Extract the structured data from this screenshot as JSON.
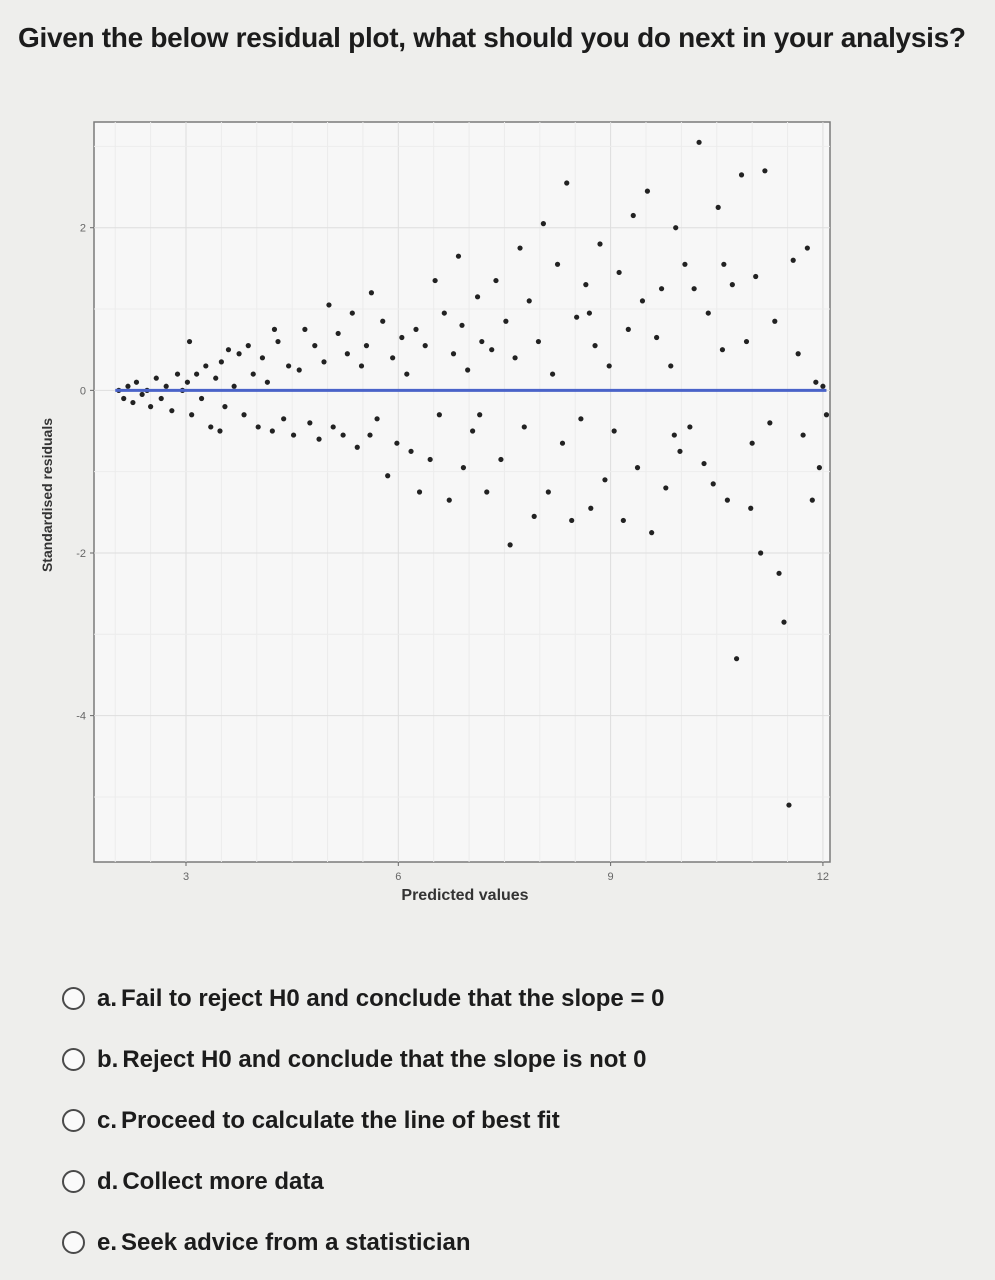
{
  "question": "Given the below residual plot, what should you do next in your analysis?",
  "options": [
    {
      "letter": "a.",
      "text": "Fail to reject H0 and conclude that the slope = 0"
    },
    {
      "letter": "b.",
      "text": "Reject H0 and conclude that the slope is not 0"
    },
    {
      "letter": "c.",
      "text": "Proceed to calculate the line of best fit"
    },
    {
      "letter": "d.",
      "text": "Collect more data"
    },
    {
      "letter": "e.",
      "text": "Seek advice from a statistician"
    }
  ],
  "chart_data": {
    "type": "scatter",
    "xlabel": "Predicted values",
    "ylabel": "Standardised residuals",
    "xlim": [
      1.7,
      12.1
    ],
    "ylim": [
      -5.8,
      3.3
    ],
    "xticks": [
      3,
      6,
      9,
      12
    ],
    "yticks": [
      2,
      0,
      -2,
      -4
    ],
    "grid": true,
    "reference_line": {
      "y": 0,
      "color": "#4a63c9"
    },
    "point_color": "#222222",
    "points": [
      [
        2.05,
        0.0
      ],
      [
        2.12,
        -0.1
      ],
      [
        2.18,
        0.05
      ],
      [
        2.25,
        -0.15
      ],
      [
        2.3,
        0.1
      ],
      [
        2.38,
        -0.05
      ],
      [
        2.45,
        0.0
      ],
      [
        2.5,
        -0.2
      ],
      [
        2.58,
        0.15
      ],
      [
        2.65,
        -0.1
      ],
      [
        2.72,
        0.05
      ],
      [
        2.8,
        -0.25
      ],
      [
        2.88,
        0.2
      ],
      [
        2.95,
        0.0
      ],
      [
        3.02,
        0.1
      ],
      [
        3.08,
        -0.3
      ],
      [
        3.15,
        0.2
      ],
      [
        3.22,
        -0.1
      ],
      [
        3.28,
        0.3
      ],
      [
        3.35,
        -0.45
      ],
      [
        3.42,
        0.15
      ],
      [
        3.5,
        0.35
      ],
      [
        3.55,
        -0.2
      ],
      [
        3.6,
        0.5
      ],
      [
        3.68,
        0.05
      ],
      [
        3.75,
        0.45
      ],
      [
        3.82,
        -0.3
      ],
      [
        3.88,
        0.55
      ],
      [
        3.95,
        0.2
      ],
      [
        4.02,
        -0.45
      ],
      [
        4.08,
        0.4
      ],
      [
        4.15,
        0.1
      ],
      [
        4.22,
        -0.5
      ],
      [
        4.3,
        0.6
      ],
      [
        4.38,
        -0.35
      ],
      [
        4.45,
        0.3
      ],
      [
        4.52,
        -0.55
      ],
      [
        4.6,
        0.25
      ],
      [
        4.68,
        0.75
      ],
      [
        4.75,
        -0.4
      ],
      [
        4.82,
        0.55
      ],
      [
        4.88,
        -0.6
      ],
      [
        4.95,
        0.35
      ],
      [
        5.02,
        1.05
      ],
      [
        5.08,
        -0.45
      ],
      [
        5.15,
        0.7
      ],
      [
        5.22,
        -0.55
      ],
      [
        5.28,
        0.45
      ],
      [
        5.35,
        0.95
      ],
      [
        5.42,
        -0.7
      ],
      [
        5.48,
        0.3
      ],
      [
        5.55,
        0.55
      ],
      [
        5.62,
        1.2
      ],
      [
        5.7,
        -0.35
      ],
      [
        5.78,
        0.85
      ],
      [
        5.85,
        -1.05
      ],
      [
        5.92,
        0.4
      ],
      [
        5.98,
        -0.65
      ],
      [
        6.05,
        0.65
      ],
      [
        6.12,
        0.2
      ],
      [
        6.18,
        -0.75
      ],
      [
        6.25,
        0.75
      ],
      [
        6.3,
        -1.25
      ],
      [
        6.38,
        0.55
      ],
      [
        6.45,
        -0.85
      ],
      [
        6.52,
        1.35
      ],
      [
        6.58,
        -0.3
      ],
      [
        6.65,
        0.95
      ],
      [
        6.72,
        -1.35
      ],
      [
        6.78,
        0.45
      ],
      [
        6.85,
        1.65
      ],
      [
        6.92,
        -0.95
      ],
      [
        6.98,
        0.25
      ],
      [
        7.05,
        -0.5
      ],
      [
        7.12,
        1.15
      ],
      [
        7.18,
        0.6
      ],
      [
        7.25,
        -1.25
      ],
      [
        7.32,
        0.5
      ],
      [
        7.38,
        1.35
      ],
      [
        7.45,
        -0.85
      ],
      [
        7.52,
        0.85
      ],
      [
        7.58,
        -1.9
      ],
      [
        7.65,
        0.4
      ],
      [
        7.72,
        1.75
      ],
      [
        7.78,
        -0.45
      ],
      [
        7.85,
        1.1
      ],
      [
        7.92,
        -1.55
      ],
      [
        7.98,
        0.6
      ],
      [
        8.05,
        2.05
      ],
      [
        8.12,
        -1.25
      ],
      [
        8.18,
        0.2
      ],
      [
        8.25,
        1.55
      ],
      [
        8.32,
        -0.65
      ],
      [
        8.38,
        2.55
      ],
      [
        8.45,
        -1.6
      ],
      [
        8.52,
        0.9
      ],
      [
        8.58,
        -0.35
      ],
      [
        8.65,
        1.3
      ],
      [
        8.72,
        -1.45
      ],
      [
        8.78,
        0.55
      ],
      [
        8.85,
        1.8
      ],
      [
        8.92,
        -1.1
      ],
      [
        8.98,
        0.3
      ],
      [
        9.05,
        -0.5
      ],
      [
        9.12,
        1.45
      ],
      [
        9.18,
        -1.6
      ],
      [
        9.25,
        0.75
      ],
      [
        9.32,
        2.15
      ],
      [
        9.38,
        -0.95
      ],
      [
        9.45,
        1.1
      ],
      [
        9.52,
        2.45
      ],
      [
        9.58,
        -1.75
      ],
      [
        9.65,
        0.65
      ],
      [
        9.72,
        1.25
      ],
      [
        9.78,
        -1.2
      ],
      [
        9.85,
        0.3
      ],
      [
        9.92,
        2.0
      ],
      [
        9.98,
        -0.75
      ],
      [
        10.05,
        1.55
      ],
      [
        10.12,
        -0.45
      ],
      [
        10.18,
        1.25
      ],
      [
        10.25,
        3.05
      ],
      [
        10.32,
        -0.9
      ],
      [
        10.38,
        0.95
      ],
      [
        10.45,
        -1.15
      ],
      [
        10.52,
        2.25
      ],
      [
        10.58,
        0.5
      ],
      [
        10.65,
        -1.35
      ],
      [
        10.72,
        1.3
      ],
      [
        10.78,
        -3.3
      ],
      [
        10.85,
        2.65
      ],
      [
        10.92,
        0.6
      ],
      [
        10.98,
        -1.45
      ],
      [
        11.05,
        1.4
      ],
      [
        11.12,
        -2.0
      ],
      [
        11.18,
        2.7
      ],
      [
        11.25,
        -0.4
      ],
      [
        11.32,
        0.85
      ],
      [
        11.38,
        -2.25
      ],
      [
        11.45,
        -2.85
      ],
      [
        11.52,
        -5.1
      ],
      [
        11.58,
        1.6
      ],
      [
        11.65,
        0.45
      ],
      [
        11.72,
        -0.55
      ],
      [
        11.78,
        1.75
      ],
      [
        11.85,
        -1.35
      ],
      [
        11.9,
        0.1
      ],
      [
        11.95,
        -0.95
      ],
      [
        12.0,
        0.05
      ],
      [
        12.05,
        -0.3
      ],
      [
        3.05,
        0.6
      ],
      [
        3.48,
        -0.5
      ],
      [
        4.25,
        0.75
      ],
      [
        5.6,
        -0.55
      ],
      [
        6.9,
        0.8
      ],
      [
        7.15,
        -0.3
      ],
      [
        8.7,
        0.95
      ],
      [
        9.9,
        -0.55
      ],
      [
        10.6,
        1.55
      ],
      [
        11.0,
        -0.65
      ]
    ]
  }
}
